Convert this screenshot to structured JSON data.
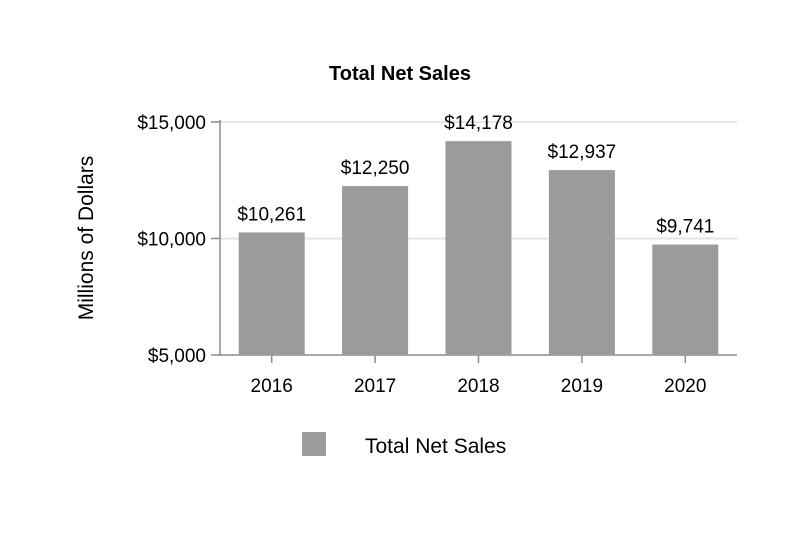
{
  "chart_data": {
    "type": "bar",
    "title": "Total Net Sales",
    "xlabel": "",
    "ylabel": "Millions of Dollars",
    "categories": [
      "2016",
      "2017",
      "2018",
      "2019",
      "2020"
    ],
    "series": [
      {
        "name": "Total Net Sales",
        "values": [
          10261,
          12250,
          14178,
          12937,
          9741
        ],
        "labels": [
          "$10,261",
          "$12,250",
          "$14,178",
          "$12,937",
          "$9,741"
        ],
        "color": "#9b9b9b"
      }
    ],
    "ylim": [
      5000,
      15000
    ],
    "yticks": [
      5000,
      10000,
      15000
    ],
    "ytick_labels": [
      "$5,000",
      "$10,000",
      "$15,000"
    ],
    "grid": true,
    "legend": "bottom-center"
  }
}
